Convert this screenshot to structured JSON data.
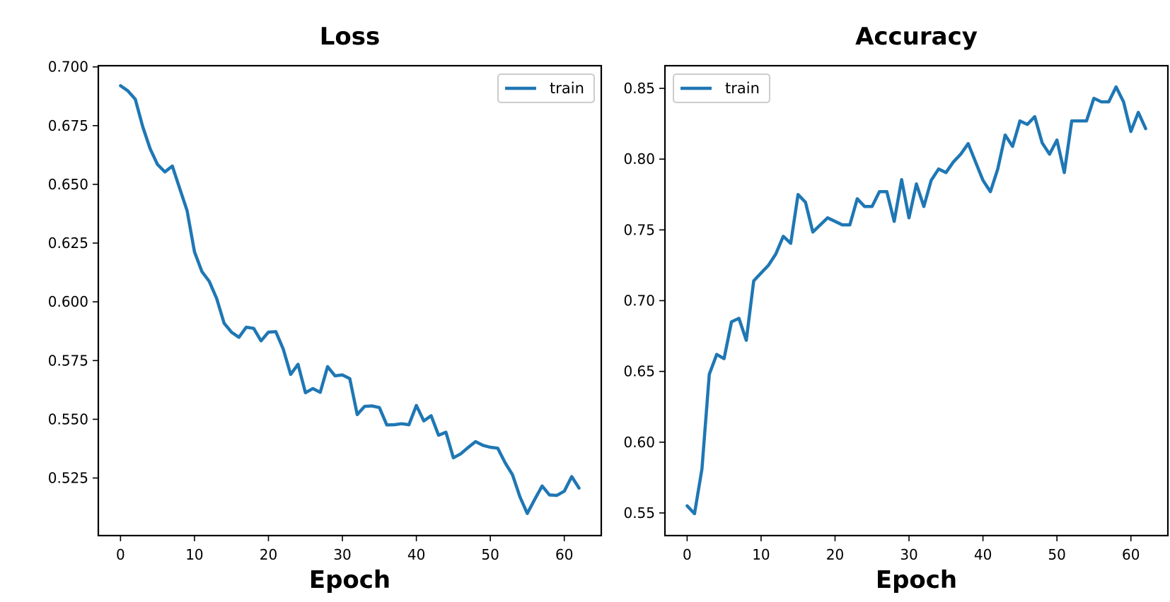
{
  "colors": {
    "series": "#1f77b4"
  },
  "chart_data": [
    {
      "type": "line",
      "title": "Loss",
      "xlabel": "Epoch",
      "ylabel": "",
      "xlim": [
        -3,
        65
      ],
      "ylim": [
        0.5005,
        0.7005
      ],
      "xticks": [
        0,
        10,
        20,
        30,
        40,
        50,
        60
      ],
      "xtick_labels": [
        "0",
        "10",
        "20",
        "30",
        "40",
        "50",
        "60"
      ],
      "yticks": [
        0.525,
        0.55,
        0.575,
        0.6,
        0.625,
        0.65,
        0.675,
        0.7
      ],
      "ytick_labels": [
        "0.525",
        "0.550",
        "0.575",
        "0.600",
        "0.625",
        "0.650",
        "0.675",
        "0.700"
      ],
      "legend": {
        "entries": [
          "train"
        ],
        "position": "upper right"
      },
      "series": [
        {
          "name": "train",
          "x": [
            0,
            1,
            2,
            3,
            4,
            5,
            6,
            7,
            8,
            9,
            10,
            11,
            12,
            13,
            14,
            15,
            16,
            17,
            18,
            19,
            20,
            21,
            22,
            23,
            24,
            25,
            26,
            27,
            28,
            29,
            30,
            31,
            32,
            33,
            34,
            35,
            36,
            37,
            38,
            39,
            40,
            41,
            42,
            43,
            44,
            45,
            46,
            47,
            48,
            49,
            50,
            51,
            52,
            53,
            54,
            55,
            56,
            57,
            58,
            59,
            60,
            61,
            62
          ],
          "values": [
            0.692,
            0.6898,
            0.6862,
            0.6746,
            0.6652,
            0.6585,
            0.6553,
            0.6578,
            0.6483,
            0.6388,
            0.6213,
            0.6129,
            0.6087,
            0.6014,
            0.5909,
            0.5871,
            0.5849,
            0.5892,
            0.5887,
            0.5834,
            0.5871,
            0.5873,
            0.5799,
            0.5691,
            0.5734,
            0.5613,
            0.5631,
            0.5615,
            0.5724,
            0.5685,
            0.5689,
            0.5673,
            0.552,
            0.5555,
            0.5557,
            0.555,
            0.5476,
            0.5477,
            0.5481,
            0.5477,
            0.5559,
            0.5493,
            0.5515,
            0.5432,
            0.5445,
            0.5336,
            0.5353,
            0.538,
            0.5405,
            0.5389,
            0.5381,
            0.5377,
            0.5315,
            0.5264,
            0.517,
            0.5099,
            0.5159,
            0.5216,
            0.5178,
            0.5176,
            0.5194,
            0.5256,
            0.5207
          ]
        }
      ]
    },
    {
      "type": "line",
      "title": "Accuracy",
      "xlabel": "Epoch",
      "ylabel": "",
      "xlim": [
        -3,
        65
      ],
      "ylim": [
        0.534,
        0.866
      ],
      "xticks": [
        0,
        10,
        20,
        30,
        40,
        50,
        60
      ],
      "xtick_labels": [
        "0",
        "10",
        "20",
        "30",
        "40",
        "50",
        "60"
      ],
      "yticks": [
        0.55,
        0.6,
        0.65,
        0.7,
        0.75,
        0.8,
        0.85
      ],
      "ytick_labels": [
        "0.55",
        "0.60",
        "0.65",
        "0.70",
        "0.75",
        "0.80",
        "0.85"
      ],
      "legend": {
        "entries": [
          "train"
        ],
        "position": "upper left"
      },
      "series": [
        {
          "name": "train",
          "x": [
            0,
            1,
            2,
            3,
            4,
            5,
            6,
            7,
            8,
            9,
            10,
            11,
            12,
            13,
            14,
            15,
            16,
            17,
            18,
            19,
            20,
            21,
            22,
            23,
            24,
            25,
            26,
            27,
            28,
            29,
            30,
            31,
            32,
            33,
            34,
            35,
            36,
            37,
            38,
            39,
            40,
            41,
            42,
            43,
            44,
            45,
            46,
            47,
            48,
            49,
            50,
            51,
            52,
            53,
            54,
            55,
            56,
            57,
            58,
            59,
            60,
            61,
            62
          ],
          "values": [
            0.555,
            0.5495,
            0.581,
            0.648,
            0.662,
            0.659,
            0.685,
            0.6875,
            0.672,
            0.714,
            0.7195,
            0.725,
            0.733,
            0.7455,
            0.7405,
            0.775,
            0.7695,
            0.7485,
            0.7535,
            0.7585,
            0.756,
            0.7535,
            0.7535,
            0.772,
            0.7665,
            0.7665,
            0.777,
            0.777,
            0.756,
            0.7855,
            0.7585,
            0.7825,
            0.7665,
            0.785,
            0.793,
            0.7905,
            0.798,
            0.8035,
            0.811,
            0.798,
            0.785,
            0.777,
            0.793,
            0.817,
            0.809,
            0.827,
            0.8245,
            0.83,
            0.8115,
            0.8035,
            0.8135,
            0.7905,
            0.827,
            0.827,
            0.827,
            0.843,
            0.8405,
            0.8405,
            0.851,
            0.8405,
            0.8195,
            0.833,
            0.8215
          ]
        }
      ]
    }
  ]
}
